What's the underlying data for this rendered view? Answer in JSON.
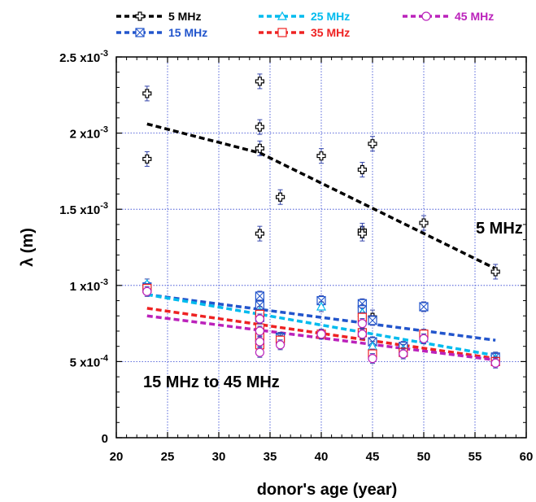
{
  "chart_data": {
    "type": "scatter",
    "title": "",
    "xlabel": "donor's age (year)",
    "ylabel": "λ (m)",
    "xlim": [
      20,
      60
    ],
    "ylim": [
      0,
      0.0025
    ],
    "x_ticks": [
      "20",
      "25",
      "30",
      "35",
      "40",
      "45",
      "50",
      "55",
      "60"
    ],
    "y_ticks": [
      {
        "value": 0,
        "mant": "0",
        "exp": ""
      },
      {
        "value": 0.0005,
        "mant": "5 x10",
        "exp": "-4"
      },
      {
        "value": 0.001,
        "mant": "1 x10",
        "exp": "-3"
      },
      {
        "value": 0.0015,
        "mant": "1.5 x10",
        "exp": "-3"
      },
      {
        "value": 0.002,
        "mant": "2 x10",
        "exp": "-3"
      },
      {
        "value": 0.0025,
        "mant": "2.5 x10",
        "exp": "-3"
      }
    ],
    "grid": true,
    "legend_position": "top",
    "annotations": [
      "5 MHz",
      "15 MHz to 45 MHz"
    ],
    "series": [
      {
        "name": "5 MHz",
        "color": "#000000",
        "marker": "cross",
        "points": [
          [
            23,
            0.00226
          ],
          [
            23,
            0.00183
          ],
          [
            34,
            0.00234
          ],
          [
            34,
            0.00204
          ],
          [
            34,
            0.0019
          ],
          [
            34,
            0.00134
          ],
          [
            36,
            0.00158
          ],
          [
            40,
            0.00185
          ],
          [
            44,
            0.00176
          ],
          [
            44,
            0.00136
          ],
          [
            44,
            0.00134
          ],
          [
            45,
            0.00193
          ],
          [
            45,
            0.00079
          ],
          [
            50,
            0.00141
          ],
          [
            57,
            0.00109
          ]
        ],
        "fit": [
          [
            23,
            0.00206
          ],
          [
            34,
            0.00187
          ],
          [
            57,
            0.00111
          ]
        ]
      },
      {
        "name": "15 MHz",
        "color": "#2255cc",
        "marker": "boxx",
        "points": [
          [
            23,
            0.00099
          ],
          [
            34,
            0.00093
          ],
          [
            34,
            0.00087
          ],
          [
            34,
            0.00079
          ],
          [
            34,
            0.00066
          ],
          [
            36,
            0.00066
          ],
          [
            40,
            0.0009
          ],
          [
            44,
            0.00088
          ],
          [
            44,
            0.00084
          ],
          [
            45,
            0.00077
          ],
          [
            45,
            0.00063
          ],
          [
            48,
            0.0006
          ],
          [
            50,
            0.00086
          ],
          [
            57,
            0.00053
          ]
        ],
        "fit": [
          [
            23,
            0.00094
          ],
          [
            57,
            0.00064
          ]
        ]
      },
      {
        "name": "25 MHz",
        "color": "#00bbee",
        "marker": "triangle",
        "points": [
          [
            23,
            0.00101
          ],
          [
            34,
            0.00083
          ],
          [
            34,
            0.00073
          ],
          [
            34,
            0.00064
          ],
          [
            36,
            0.00065
          ],
          [
            40,
            0.00086
          ],
          [
            44,
            0.00082
          ],
          [
            44,
            0.00078
          ],
          [
            45,
            0.0006
          ],
          [
            48,
            0.00058
          ],
          [
            50,
            0.00065
          ],
          [
            57,
            0.00052
          ]
        ],
        "fit": [
          [
            23,
            0.00094
          ],
          [
            57,
            0.00054
          ]
        ]
      },
      {
        "name": "35 MHz",
        "color": "#ee2222",
        "marker": "square",
        "points": [
          [
            23,
            0.00098
          ],
          [
            34,
            0.00081
          ],
          [
            34,
            0.00072
          ],
          [
            34,
            0.00066
          ],
          [
            34,
            0.00061
          ],
          [
            36,
            0.00064
          ],
          [
            40,
            0.00068
          ],
          [
            44,
            0.00079
          ],
          [
            44,
            0.00069
          ],
          [
            45,
            0.00055
          ],
          [
            48,
            0.00056
          ],
          [
            50,
            0.00068
          ],
          [
            57,
            0.0005
          ]
        ],
        "fit": [
          [
            23,
            0.00085
          ],
          [
            57,
            0.00052
          ]
        ]
      },
      {
        "name": "45 MHz",
        "color": "#bb22bb",
        "marker": "circle",
        "points": [
          [
            23,
            0.00096
          ],
          [
            34,
            0.00078
          ],
          [
            34,
            0.0007
          ],
          [
            34,
            0.00063
          ],
          [
            34,
            0.00056
          ],
          [
            36,
            0.00061
          ],
          [
            40,
            0.00068
          ],
          [
            44,
            0.00075
          ],
          [
            44,
            0.00068
          ],
          [
            45,
            0.00052
          ],
          [
            48,
            0.00055
          ],
          [
            50,
            0.00065
          ],
          [
            57,
            0.00049
          ]
        ],
        "fit": [
          [
            23,
            0.0008
          ],
          [
            57,
            0.00051
          ]
        ]
      }
    ]
  }
}
